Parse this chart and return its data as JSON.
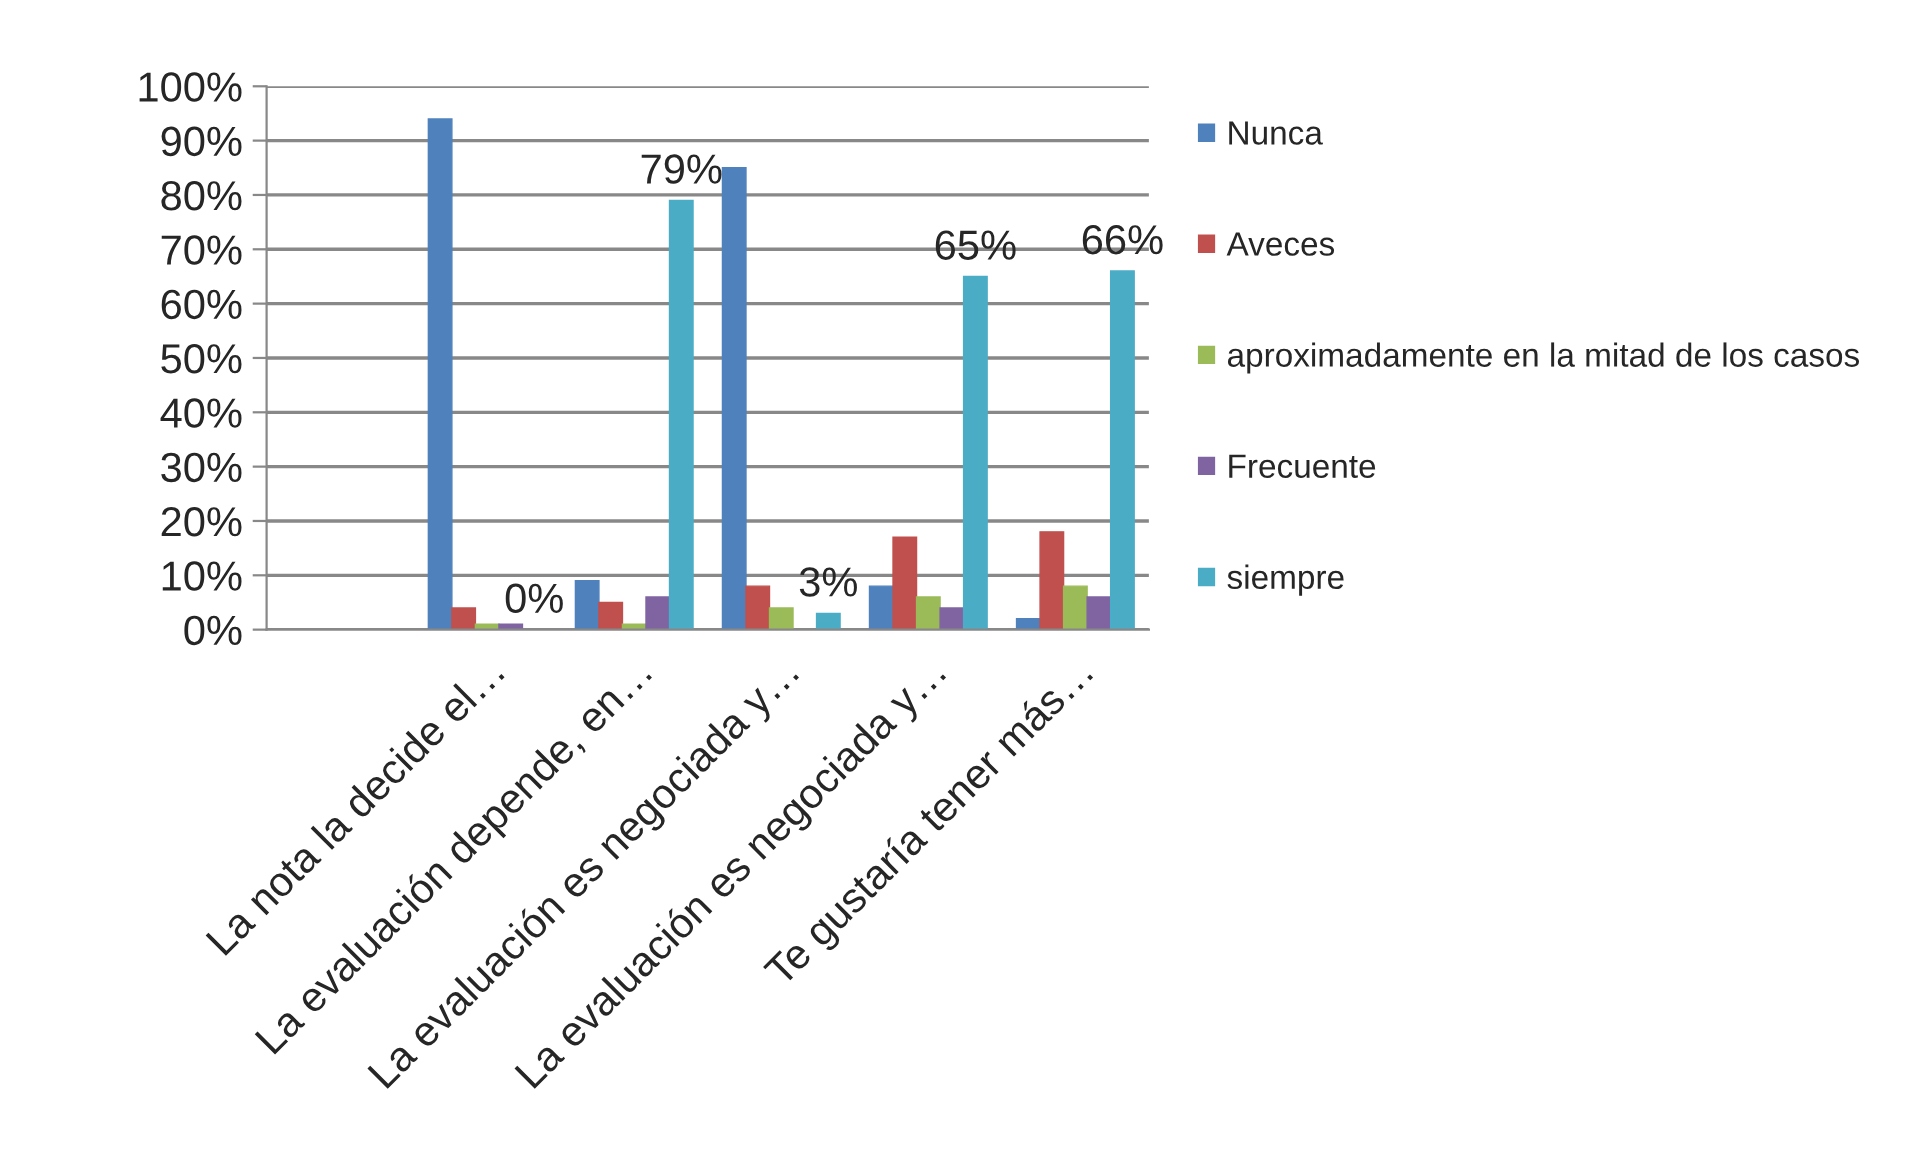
{
  "chart_data": {
    "type": "bar",
    "categories": [
      null,
      "La nota la decide el…",
      "La evaluación depende, en…",
      "La evaluación es negociada y…",
      "La evaluación es negociada y…",
      "Te gustaría tener más…"
    ],
    "series": [
      {
        "name": "Nunca",
        "color": "#4f81bd",
        "values": [
          null,
          94,
          9,
          85,
          8,
          2
        ]
      },
      {
        "name": "Aveces",
        "color": "#c0504d",
        "values": [
          null,
          4,
          5,
          8,
          17,
          18
        ]
      },
      {
        "name": "aproximadamente en la mitad de los casos",
        "color": "#9bbb59",
        "values": [
          null,
          1,
          1,
          4,
          6,
          8
        ]
      },
      {
        "name": "Frecuente",
        "color": "#8064a2",
        "values": [
          null,
          1,
          6,
          0,
          4,
          6
        ]
      },
      {
        "name": "siempre",
        "color": "#4bacc6",
        "values": [
          null,
          0,
          79,
          3,
          65,
          66
        ],
        "value_labels": [
          null,
          "0%",
          "79%",
          "3%",
          "65%",
          "66%"
        ]
      }
    ],
    "ylim": [
      0,
      100
    ],
    "yticks": [
      {
        "value": 0,
        "label": "0%"
      },
      {
        "value": 10,
        "label": "10%"
      },
      {
        "value": 20,
        "label": "20%"
      },
      {
        "value": 30,
        "label": "30%"
      },
      {
        "value": 40,
        "label": "40%"
      },
      {
        "value": 50,
        "label": "50%"
      },
      {
        "value": 60,
        "label": "60%"
      },
      {
        "value": 70,
        "label": "70%"
      },
      {
        "value": 80,
        "label": "80%"
      },
      {
        "value": 90,
        "label": "90%"
      },
      {
        "value": 100,
        "label": "100%"
      }
    ],
    "grid": "y",
    "legend": "right"
  }
}
